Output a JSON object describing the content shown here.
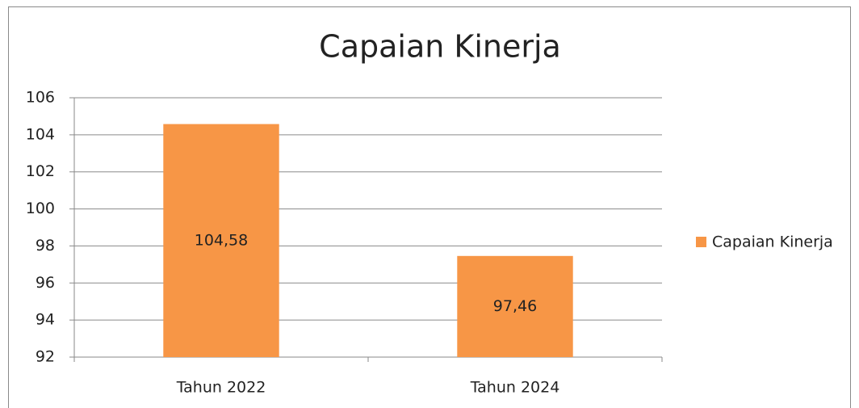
{
  "chart_data": {
    "type": "bar",
    "title": "Capaian Kinerja",
    "categories": [
      "Tahun 2022",
      "Tahun 2024"
    ],
    "series": [
      {
        "name": "Capaian Kinerja",
        "color": "#f79646",
        "values": [
          104.58,
          97.46
        ],
        "value_labels": [
          "104,58",
          "97,46"
        ]
      }
    ],
    "ylim": [
      92,
      106
    ],
    "yticks": [
      92,
      94,
      96,
      98,
      100,
      102,
      104,
      106
    ],
    "grid": true,
    "legend": "right"
  }
}
